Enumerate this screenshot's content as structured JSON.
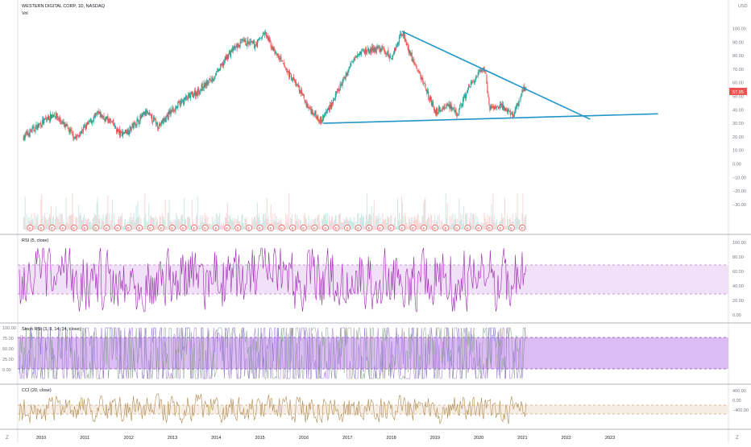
{
  "symbol_title": "WESTERN DIGITAL CORP, 1D, NASDAQ",
  "vol_label": "Vol",
  "currency": "USD",
  "colors": {
    "up": "#26a69a",
    "down": "#ef5350",
    "trendline": "#2196c9",
    "rsi": "#9c27b0",
    "rsi_band": "#e8d4f3",
    "stoch_band": "#d6b3f2",
    "stoch_k": "#9c6fd6",
    "stoch_d": "#7fa08a",
    "cci": "#b08a50",
    "cci_band": "#f4ebe0",
    "last_price_bg": "#ef5350",
    "earnings": "#ef5350"
  },
  "price_axis": [
    "100.00",
    "90.00",
    "80.00",
    "70.00",
    "60.00",
    "50.00",
    "40.00",
    "30.00",
    "20.00",
    "10.00",
    "0.00",
    "−10.00",
    "−20.00",
    "−30.00"
  ],
  "last_price": "57.95",
  "rsi_panel": {
    "label": "RSI (5, close)",
    "axis": [
      "100.00",
      "80.00",
      "60.00",
      "40.00",
      "20.00",
      "0.00"
    ]
  },
  "stoch_panel": {
    "label": "Stoch RSI (3, 3, 14, 14, close)",
    "axis_left": [
      "100.00",
      "75.00",
      "50.00",
      "25.00",
      "0.00"
    ]
  },
  "cci_panel": {
    "label": "CCI (20, close)",
    "axis": [
      "400.00",
      "0.00",
      "−400.00"
    ]
  },
  "time_axis": [
    "2010",
    "2011",
    "2012",
    "2013",
    "2014",
    "2015",
    "2016",
    "2017",
    "2018",
    "2019",
    "2020",
    "2021",
    "2022",
    "2023"
  ],
  "earnings_marker": "E",
  "corner_buttons": {
    "left": "Z",
    "right": "Z"
  },
  "chart_data": {
    "type": "candlestick",
    "title": "WESTERN DIGITAL CORP, 1D, NASDAQ",
    "x": [
      2009.6,
      2010.0,
      2010.3,
      2010.6,
      2010.8,
      2011.0,
      2011.3,
      2011.6,
      2011.8,
      2012.0,
      2012.4,
      2012.7,
      2013.0,
      2013.3,
      2013.6,
      2014.0,
      2014.3,
      2014.6,
      2014.9,
      2015.1,
      2015.3,
      2015.6,
      2015.9,
      2016.1,
      2016.4,
      2016.7,
      2017.0,
      2017.2,
      2017.5,
      2017.8,
      2018.0,
      2018.25,
      2018.5,
      2018.8,
      2019.0,
      2019.3,
      2019.5,
      2019.8,
      2020.0,
      2020.15,
      2020.25,
      2020.5,
      2020.8,
      2021.0,
      2021.1
    ],
    "close": [
      20,
      30,
      37,
      26,
      19,
      27,
      37,
      31,
      22,
      25,
      38,
      28,
      40,
      48,
      54,
      66,
      82,
      90,
      88,
      97,
      85,
      70,
      55,
      42,
      32,
      48,
      68,
      82,
      84,
      85,
      78,
      98,
      76,
      56,
      38,
      44,
      36,
      58,
      66,
      70,
      40,
      43,
      36,
      54,
      58
    ],
    "last": 57.95,
    "ylim": [
      -35,
      105
    ],
    "trendlines": [
      {
        "name": "descending",
        "points": [
          [
            2018.25,
            98
          ],
          [
            2022.55,
            33
          ]
        ]
      },
      {
        "name": "support",
        "points": [
          [
            2016.45,
            30
          ],
          [
            2024.1,
            37
          ]
        ]
      }
    ],
    "indicators": [
      {
        "name": "RSI (5, close)",
        "ylim": [
          0,
          100
        ],
        "band": [
          30,
          70
        ]
      },
      {
        "name": "Stoch RSI (3, 3, 14, 14, close)",
        "ylim": [
          0,
          100
        ],
        "band": [
          20,
          80
        ]
      },
      {
        "name": "CCI (20, close)",
        "ylim": [
          -400,
          400
        ],
        "band": [
          -100,
          100
        ]
      }
    ]
  }
}
